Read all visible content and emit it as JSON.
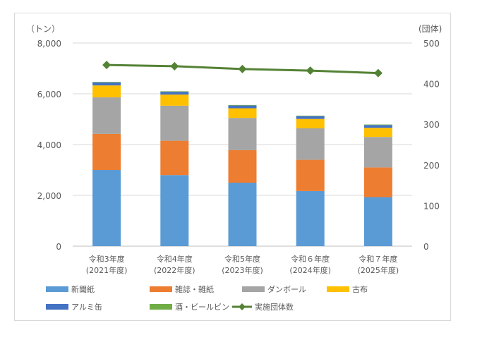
{
  "chart_data": {
    "type": "bar",
    "stacked": true,
    "categories": [
      [
        "令和3年度",
        "(2021年度)"
      ],
      [
        "令和4年度",
        "(2022年度)"
      ],
      [
        "令和5年度",
        "(2023年度)"
      ],
      [
        "令和６年度",
        "(2024年度)"
      ],
      [
        "令和７年度",
        "(2025年度)"
      ]
    ],
    "left_unit": "（トン）",
    "right_unit": "(団体)",
    "ylim": [
      0,
      8000
    ],
    "y2lim": [
      0,
      500
    ],
    "yticks": [
      "0",
      "2,000",
      "4,000",
      "6,000",
      "8,000"
    ],
    "y2ticks": [
      "0",
      "100",
      "200",
      "300",
      "400",
      "500"
    ],
    "grid": true,
    "legend_position": "bottom",
    "series": [
      {
        "name": "新聞紙",
        "color": "#5b9bd5",
        "values": [
          3000,
          2800,
          2500,
          2170,
          1930
        ]
      },
      {
        "name": "雑誌・雑紙",
        "color": "#ed7d31",
        "values": [
          1420,
          1350,
          1280,
          1230,
          1170
        ]
      },
      {
        "name": "ダンボール",
        "color": "#a5a5a5",
        "values": [
          1440,
          1380,
          1270,
          1240,
          1200
        ]
      },
      {
        "name": "古布",
        "color": "#ffc000",
        "values": [
          470,
          440,
          380,
          370,
          360
        ]
      },
      {
        "name": "アルミ缶",
        "color": "#4472c4",
        "values": [
          120,
          110,
          110,
          110,
          110
        ]
      },
      {
        "name": "酒・ビールビン",
        "color": "#70ad47",
        "values": [
          20,
          20,
          20,
          20,
          20
        ]
      }
    ],
    "line": {
      "name": "実施団体数",
      "color": "#548235",
      "axis": "right",
      "values": [
        446,
        443,
        436,
        432,
        426
      ]
    }
  }
}
